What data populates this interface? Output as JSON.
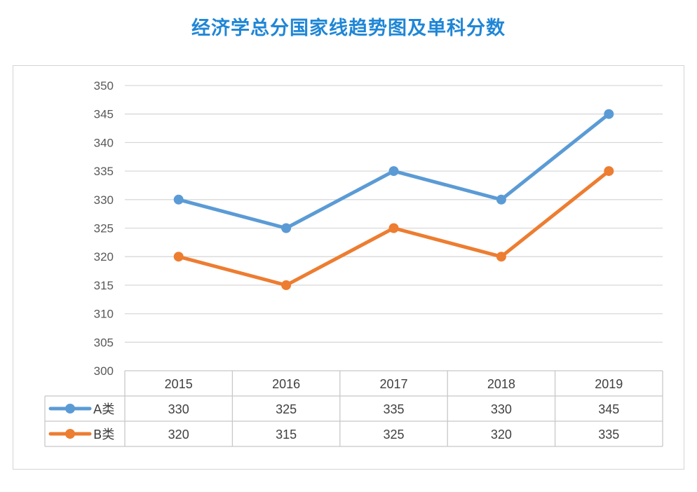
{
  "title": "经济学总分国家线趋势图及单科分数",
  "chart_data": {
    "type": "line",
    "title": "经济学总分国家线趋势图及单科分数",
    "categories": [
      "2015",
      "2016",
      "2017",
      "2018",
      "2019"
    ],
    "series": [
      {
        "name": "A类",
        "values": [
          330,
          325,
          335,
          330,
          345
        ],
        "color": "#5b9bd5"
      },
      {
        "name": "B类",
        "values": [
          320,
          315,
          325,
          320,
          335
        ],
        "color": "#ed7d31"
      }
    ],
    "ylim": [
      300,
      350
    ],
    "yticks": [
      300,
      305,
      310,
      315,
      320,
      325,
      330,
      335,
      340,
      345,
      350
    ],
    "grid": true,
    "data_table": true,
    "markers": "circle"
  }
}
